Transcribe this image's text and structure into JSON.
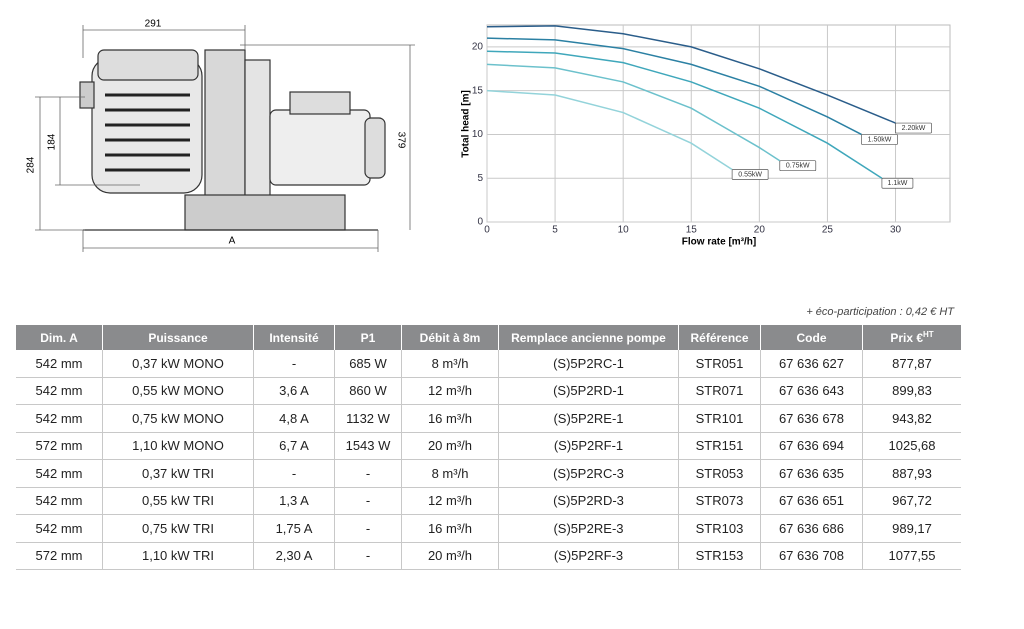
{
  "drawing": {
    "dims": [
      "291",
      "379",
      "284",
      "184",
      "A"
    ]
  },
  "chart_data": {
    "type": "line",
    "xlabel": "Flow rate [m³/h]",
    "ylabel": "Total head [m]",
    "xlim": [
      0,
      34
    ],
    "ylim": [
      0,
      22.5
    ],
    "xticks": [
      0,
      5,
      10,
      15,
      20,
      25,
      30
    ],
    "yticks": [
      0,
      5,
      10,
      15,
      20
    ],
    "grid": true,
    "series": [
      {
        "name": "0.55kW",
        "color": "#93d3da",
        "x": [
          0,
          5,
          10,
          15,
          18
        ],
        "values": [
          15,
          14.5,
          12.5,
          9,
          6
        ]
      },
      {
        "name": "0.75kW",
        "color": "#6cc1cc",
        "x": [
          0,
          5,
          10,
          15,
          20,
          21.5
        ],
        "values": [
          18,
          17.6,
          16,
          13,
          8.5,
          7
        ]
      },
      {
        "name": "1.1kW",
        "color": "#3fa7bb",
        "x": [
          0,
          5,
          10,
          15,
          20,
          25,
          29
        ],
        "values": [
          19.5,
          19.3,
          18.2,
          16,
          13,
          9,
          5
        ]
      },
      {
        "name": "1.50kW",
        "color": "#2b80a3",
        "x": [
          0,
          5,
          10,
          15,
          20,
          25,
          27.5
        ],
        "values": [
          21,
          20.8,
          19.8,
          18,
          15.5,
          12,
          10
        ]
      },
      {
        "name": "2.20kW",
        "color": "#2a5d8a",
        "x": [
          0,
          5,
          10,
          15,
          20,
          25,
          30
        ],
        "values": [
          22.3,
          22.4,
          21.5,
          20,
          17.5,
          14.5,
          11.3
        ]
      }
    ]
  },
  "note": "+ éco-participation : 0,42 € HT",
  "table": {
    "headers": [
      "Dim. A",
      "Puissance",
      "Intensité",
      "P1",
      "Débit à 8m",
      "Remplace ancienne pompe",
      "Référence",
      "Code",
      {
        "text": "Prix €",
        "sup": "HT"
      }
    ],
    "rows": [
      [
        "542 mm",
        "0,37 kW MONO",
        "-",
        "685 W",
        "8 m³/h",
        "(S)5P2RC-1",
        "STR051",
        "67 636 627",
        "877,87"
      ],
      [
        "542 mm",
        "0,55 kW MONO",
        "3,6 A",
        "860 W",
        "12 m³/h",
        "(S)5P2RD-1",
        "STR071",
        "67 636 643",
        "899,83"
      ],
      [
        "542 mm",
        "0,75 kW MONO",
        "4,8 A",
        "1132 W",
        "16 m³/h",
        "(S)5P2RE-1",
        "STR101",
        "67 636 678",
        "943,82"
      ],
      [
        "572 mm",
        "1,10 kW MONO",
        "6,7 A",
        "1543 W",
        "20 m³/h",
        "(S)5P2RF-1",
        "STR151",
        "67 636 694",
        "1025,68"
      ],
      [
        "542 mm",
        "0,37 kW TRI",
        "-",
        "-",
        "8 m³/h",
        "(S)5P2RC-3",
        "STR053",
        "67 636 635",
        "887,93"
      ],
      [
        "542 mm",
        "0,55 kW TRI",
        "1,3 A",
        "-",
        "12 m³/h",
        "(S)5P2RD-3",
        "STR073",
        "67 636 651",
        "967,72"
      ],
      [
        "542 mm",
        "0,75 kW TRI",
        "1,75 A",
        "-",
        "16 m³/h",
        "(S)5P2RE-3",
        "STR103",
        "67 636 686",
        "989,17"
      ],
      [
        "572 mm",
        "1,10 kW TRI",
        "2,30 A",
        "-",
        "20 m³/h",
        "(S)5P2RF-3",
        "STR153",
        "67 636 708",
        "1077,55"
      ]
    ]
  }
}
